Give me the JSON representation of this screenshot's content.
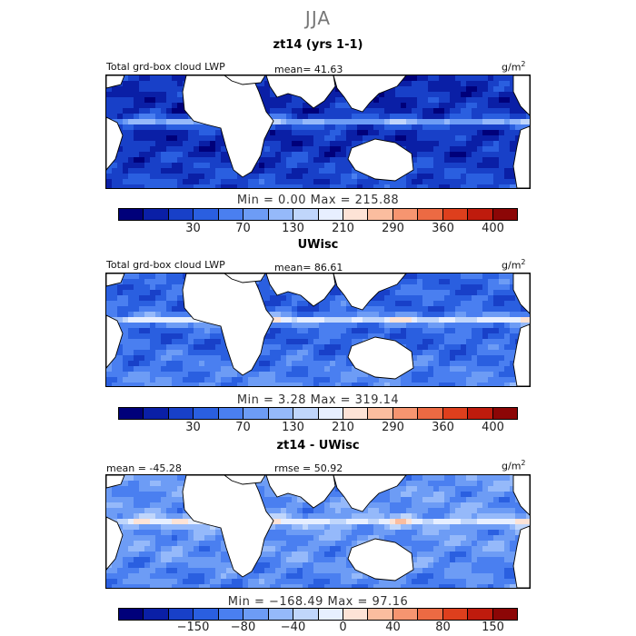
{
  "season": "JJA",
  "panels": [
    {
      "id": "p1",
      "title": "zt14 (yrs 1-1)",
      "left_label": "Total grd-box cloud LWP",
      "mid_label": "mean=  41.63",
      "units": "g/m",
      "units_exp": "2",
      "minmax": "Min =    0.00 Max = 215.88",
      "ticks": [
        "30",
        "70",
        "130",
        "210",
        "290",
        "360",
        "400"
      ],
      "field": "p1"
    },
    {
      "id": "p2",
      "title": "UWisc",
      "left_label": "Total grd-box cloud LWP",
      "mid_label": "mean=  86.61",
      "units": "g/m",
      "units_exp": "2",
      "minmax": "Min =    3.28 Max = 319.14",
      "ticks": [
        "30",
        "70",
        "130",
        "210",
        "290",
        "360",
        "400"
      ],
      "field": "p2"
    },
    {
      "id": "p3",
      "title": "zt14 - UWisc",
      "left_label": "mean = -45.28",
      "mid_label": "rmse =  50.92",
      "units": "g/m",
      "units_exp": "2",
      "minmax": "Min = −168.49 Max =  97.16",
      "ticks": [
        "−150",
        "−80",
        "−40",
        "0",
        "40",
        "80",
        "150"
      ],
      "field": "p3"
    }
  ],
  "colorbar": [
    "#00007a",
    "#0a1fa6",
    "#1840c8",
    "#2a5fe0",
    "#4a7ff0",
    "#6d9cf5",
    "#95b9fa",
    "#c0d6fb",
    "#e7efff",
    "#fde3d6",
    "#fbbd9f",
    "#f69570",
    "#ec6a43",
    "#de3f1d",
    "#bf1b0d",
    "#8c0606"
  ],
  "land_color": "#ffffff",
  "chart_data": [
    {
      "type": "heatmap",
      "title": "zt14 (yrs 1-1)",
      "xlabel": "",
      "ylabel": "",
      "mean": 41.63,
      "min": 0.0,
      "max": 215.88,
      "units": "g/m2",
      "color_levels": [
        30,
        70,
        130,
        210,
        290,
        360,
        400
      ]
    },
    {
      "type": "heatmap",
      "title": "UWisc",
      "xlabel": "",
      "ylabel": "",
      "mean": 86.61,
      "min": 3.28,
      "max": 319.14,
      "units": "g/m2",
      "color_levels": [
        30,
        70,
        130,
        210,
        290,
        360,
        400
      ]
    },
    {
      "type": "heatmap",
      "title": "zt14 - UWisc",
      "xlabel": "",
      "ylabel": "",
      "mean": -45.28,
      "rmse": 50.92,
      "min": -168.49,
      "max": 97.16,
      "units": "g/m2",
      "color_levels": [
        -150,
        -80,
        -40,
        0,
        40,
        80,
        150
      ]
    }
  ]
}
